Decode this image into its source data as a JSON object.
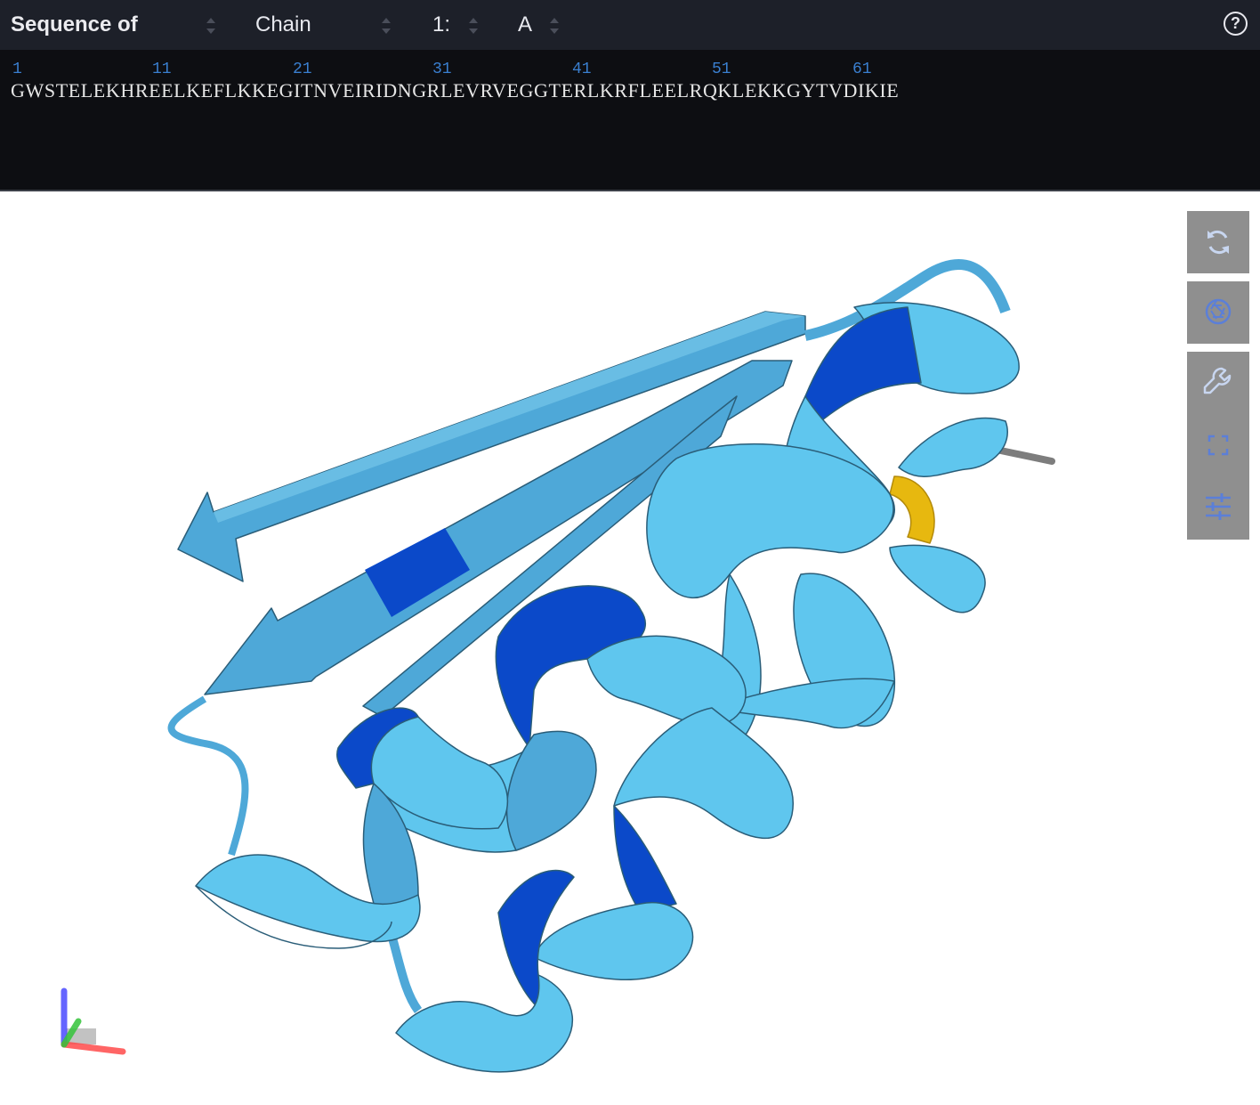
{
  "header": {
    "title": "Sequence of",
    "selectors": [
      {
        "name": "structure",
        "value": ""
      },
      {
        "name": "mode",
        "value": "Chain"
      },
      {
        "name": "entity",
        "value": "1:"
      },
      {
        "name": "chain",
        "value": "A"
      }
    ],
    "help_icon": "question-circle-icon"
  },
  "sequence": {
    "residue_numbers": [
      "1",
      "11",
      "21",
      "31",
      "41",
      "51",
      "61"
    ],
    "letters": "GWSTELEKHREELKEFLKKEGITNVEIRIDNGRLEVRVEGGTERLKRFLEELRQKLEKKGYTVDIKIE"
  },
  "toolbar": {
    "buttons": [
      {
        "name": "spin-toggle",
        "icon": "rotate-icon"
      },
      {
        "name": "screenshot",
        "icon": "camera-aperture-icon"
      },
      {
        "name": "settings",
        "icon": "wrench-icon"
      },
      {
        "name": "fullscreen",
        "icon": "expand-icon"
      },
      {
        "name": "controls",
        "icon": "sliders-icon"
      }
    ]
  },
  "colors": {
    "header_bg": "#1d2029",
    "sequence_bg": "#0d0e12",
    "residue_number": "#3a7fd0",
    "ribbon_light": "#5fc6ee",
    "ribbon_dark_highlight": "#0b49c9",
    "ribbon_shade": "#3f8fb6",
    "ligand": "#f1c40f",
    "toolbar_button": "#8f8f8f",
    "axis_x": "#ff4b4b",
    "axis_y": "#35c43a",
    "axis_z": "#4b4bff"
  }
}
